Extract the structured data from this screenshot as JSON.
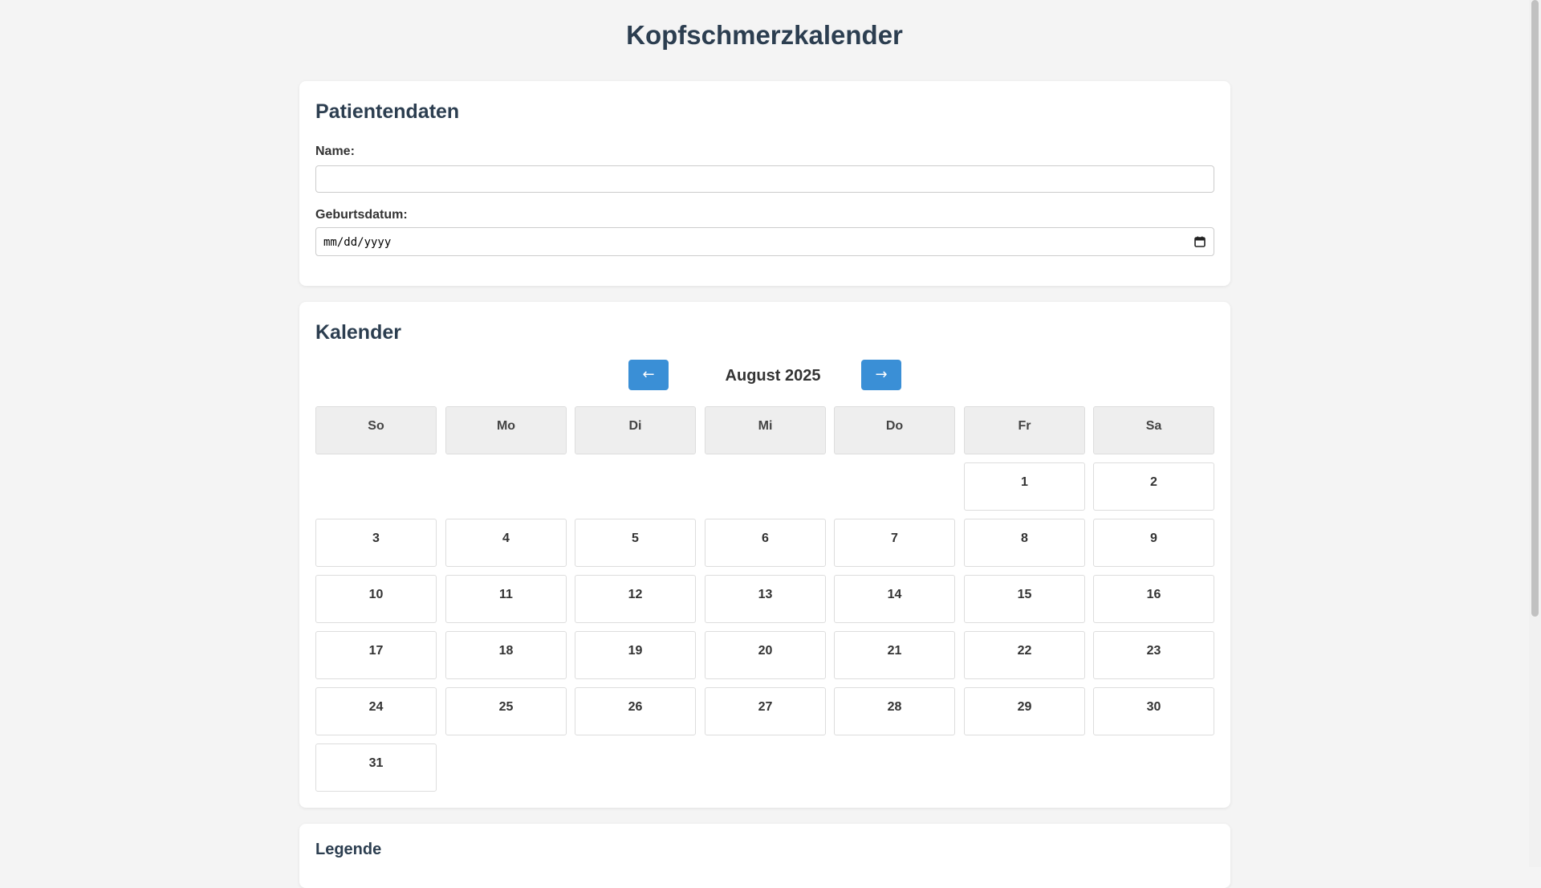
{
  "title": "Kopfschmerzkalender",
  "patient": {
    "heading": "Patientendaten",
    "name_label": "Name:",
    "name_value": "",
    "birth_label": "Geburtsdatum:",
    "birth_placeholder": "mm/dd/yyyy"
  },
  "calendar": {
    "heading": "Kalender",
    "prev_label": "←",
    "next_label": "→",
    "month_label": "August 2025",
    "weekdays": [
      "So",
      "Mo",
      "Di",
      "Mi",
      "Do",
      "Fr",
      "Sa"
    ],
    "first_weekday_index": 5,
    "days_in_month": 31
  },
  "legend": {
    "heading": "Legende"
  },
  "colors": {
    "accent": "#3a8fd6",
    "title": "#2c3e50",
    "background": "#f4f4f4"
  }
}
